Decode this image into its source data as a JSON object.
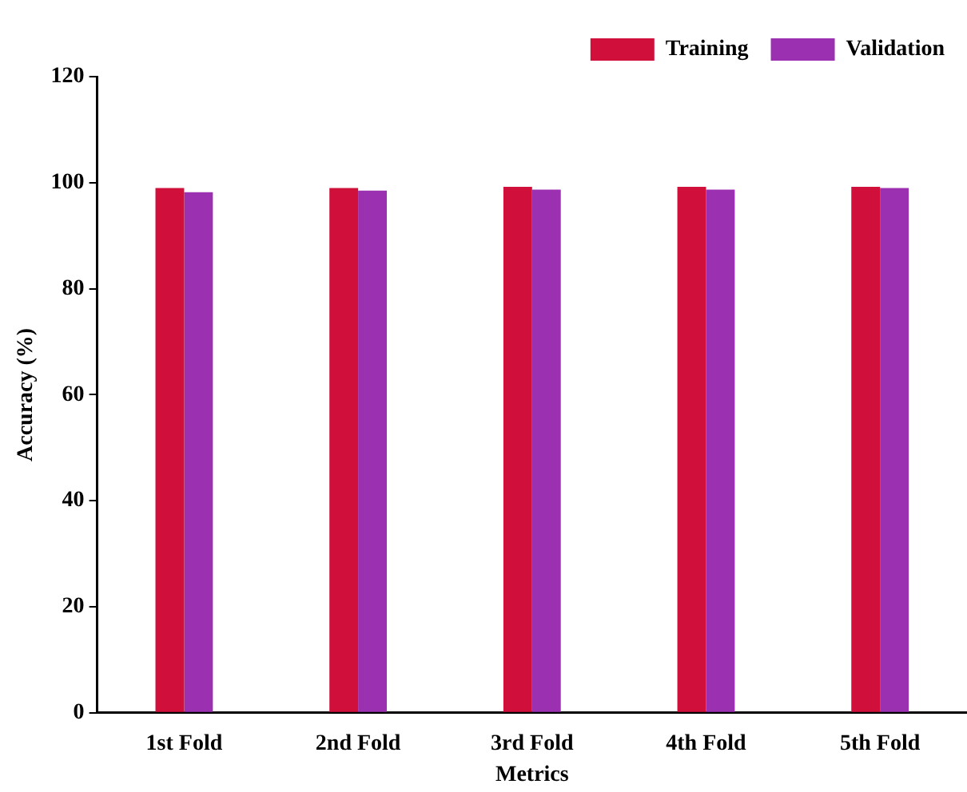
{
  "chart_data": {
    "type": "bar",
    "xlabel": "Metrics",
    "ylabel": "Accuracy (%)",
    "categories": [
      "1st Fold",
      "2nd Fold",
      "3rd Fold",
      "4th Fold",
      "5th Fold"
    ],
    "series": [
      {
        "name": "Training",
        "color": "#d0103a",
        "values": [
          99.0,
          99.0,
          99.2,
          99.2,
          99.2
        ]
      },
      {
        "name": "Validation",
        "color": "#9b30b0",
        "values": [
          98.2,
          98.5,
          98.7,
          98.7,
          99.0
        ]
      }
    ],
    "ylim": [
      0,
      120
    ],
    "yticks": [
      0,
      20,
      40,
      60,
      80,
      100,
      120
    ],
    "grid": false,
    "legend": "top right"
  }
}
